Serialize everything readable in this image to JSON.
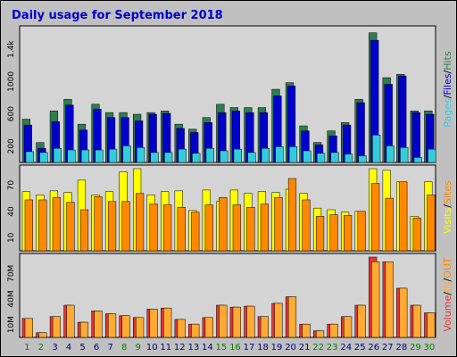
{
  "title": "Daily usage for September 2018",
  "colors": {
    "frame_bg": "#c0c0c0",
    "panel_bg": "#d4d4d4",
    "title": "#0000cc",
    "hits": "#2e7d4f",
    "files": "#0000cc",
    "pages": "#33ccdd",
    "visits": "#ffff00",
    "sites": "#ff8800",
    "kbin": "#ff8800",
    "kbout": "#ffaa33",
    "volume": "#e83333",
    "weekend_day": "#008000",
    "weekday": "#000080"
  },
  "days": [
    "1",
    "2",
    "3",
    "4",
    "5",
    "6",
    "7",
    "8",
    "9",
    "10",
    "11",
    "12",
    "13",
    "14",
    "15",
    "16",
    "17",
    "18",
    "19",
    "20",
    "21",
    "22",
    "23",
    "24",
    "25",
    "26",
    "27",
    "28",
    "29",
    "30"
  ],
  "weekend_days": [
    "1",
    "2",
    "8",
    "9",
    "15",
    "16",
    "22",
    "23",
    "29",
    "30"
  ],
  "chart_data": [
    {
      "type": "bar",
      "name": "hits-files-pages",
      "legend": [
        "Pages",
        "Files",
        "Hits"
      ],
      "legend_separator": "/",
      "yticks": [
        "200",
        "600",
        "1000",
        "1.4k"
      ],
      "ylim": [
        0,
        1600
      ],
      "categories": [
        "1",
        "2",
        "3",
        "4",
        "5",
        "6",
        "7",
        "8",
        "9",
        "10",
        "11",
        "12",
        "13",
        "14",
        "15",
        "16",
        "17",
        "18",
        "19",
        "20",
        "21",
        "22",
        "23",
        "24",
        "25",
        "26",
        "27",
        "28",
        "29",
        "30"
      ],
      "series": [
        {
          "name": "Hits",
          "values": [
            520,
            240,
            620,
            760,
            460,
            700,
            600,
            600,
            580,
            600,
            620,
            460,
            400,
            540,
            700,
            660,
            660,
            660,
            880,
            960,
            440,
            240,
            380,
            480,
            760,
            1560,
            1020,
            1060,
            620,
            620
          ]
        },
        {
          "name": "Files",
          "values": [
            450,
            170,
            490,
            690,
            390,
            640,
            540,
            540,
            500,
            580,
            590,
            410,
            360,
            480,
            600,
            620,
            600,
            600,
            800,
            920,
            380,
            210,
            320,
            450,
            720,
            1470,
            940,
            1040,
            600,
            580
          ]
        },
        {
          "name": "Pages",
          "values": [
            130,
            120,
            170,
            150,
            150,
            150,
            160,
            200,
            180,
            120,
            120,
            160,
            110,
            170,
            140,
            160,
            120,
            170,
            190,
            190,
            140,
            110,
            120,
            100,
            80,
            330,
            200,
            180,
            60,
            160
          ]
        }
      ]
    },
    {
      "type": "bar",
      "name": "visits-sites",
      "legend": [
        "Visits",
        "Sites"
      ],
      "legend_separator": "/",
      "yticks": [
        "10",
        "40",
        "70"
      ],
      "ylim": [
        0,
        100
      ],
      "categories": [
        "1",
        "2",
        "3",
        "4",
        "5",
        "6",
        "7",
        "8",
        "9",
        "10",
        "11",
        "12",
        "13",
        "14",
        "15",
        "16",
        "17",
        "18",
        "19",
        "20",
        "21",
        "22",
        "23",
        "24",
        "25",
        "26",
        "27",
        "28",
        "29",
        "30"
      ],
      "series": [
        {
          "name": "Visits",
          "values": [
            72,
            68,
            73,
            71,
            86,
            68,
            72,
            96,
            100,
            68,
            72,
            73,
            49,
            74,
            60,
            74,
            70,
            72,
            71,
            75,
            70,
            52,
            50,
            47,
            48,
            100,
            98,
            84,
            42,
            84
          ]
        },
        {
          "name": "Sites",
          "values": [
            62,
            62,
            65,
            59,
            50,
            66,
            60,
            60,
            70,
            57,
            56,
            53,
            47,
            56,
            65,
            56,
            53,
            57,
            65,
            88,
            62,
            42,
            44,
            43,
            48,
            82,
            64,
            84,
            40,
            68
          ]
        }
      ]
    },
    {
      "type": "bar",
      "name": "volume",
      "legend": [
        "Volume",
        "IN",
        "OUT"
      ],
      "legend_separator": "/",
      "yticks": [
        "10M",
        "40M",
        "70M"
      ],
      "ylim": [
        0,
        85
      ],
      "categories": [
        "1",
        "2",
        "3",
        "4",
        "5",
        "6",
        "7",
        "8",
        "9",
        "10",
        "11",
        "12",
        "13",
        "14",
        "15",
        "16",
        "17",
        "18",
        "19",
        "20",
        "21",
        "22",
        "23",
        "24",
        "25",
        "26",
        "27",
        "28",
        "29",
        "30"
      ],
      "series": [
        {
          "name": "Volume",
          "values": [
            20,
            5,
            22,
            34,
            16,
            28,
            25,
            23,
            21,
            30,
            31,
            19,
            14,
            21,
            34,
            32,
            33,
            22,
            36,
            43,
            14,
            7,
            14,
            22,
            34,
            85,
            80,
            52,
            34,
            26
          ]
        },
        {
          "name": "OUT",
          "values": [
            20,
            5,
            22,
            34,
            16,
            28,
            25,
            23,
            21,
            30,
            31,
            19,
            14,
            21,
            34,
            32,
            33,
            22,
            36,
            43,
            14,
            7,
            14,
            22,
            34,
            80,
            80,
            52,
            34,
            26
          ]
        }
      ]
    }
  ]
}
